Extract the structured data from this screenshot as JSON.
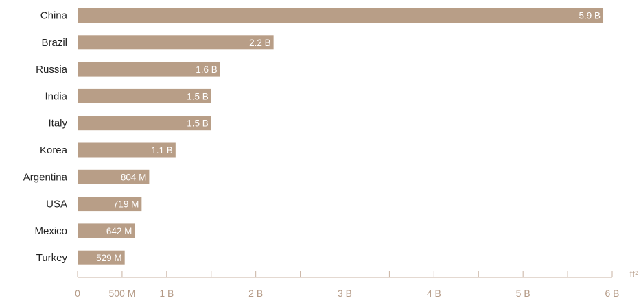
{
  "colors": {
    "bar": "#b89e87",
    "axis": "#c9b3a3",
    "tick_text": "#b49a86",
    "label_text": "#222222"
  },
  "chart_data": {
    "type": "bar",
    "orientation": "horizontal",
    "categories": [
      "China",
      "Brazil",
      "Russia",
      "India",
      "Italy",
      "Korea",
      "Argentina",
      "USA",
      "Mexico",
      "Turkey"
    ],
    "values": [
      5900000000,
      2200000000,
      1600000000,
      1500000000,
      1500000000,
      1100000000,
      804000000,
      719000000,
      642000000,
      529000000
    ],
    "value_labels": [
      "5.9 B",
      "2.2 B",
      "1.6 B",
      "1.5 B",
      "1.5 B",
      "1.1 B",
      "804 M",
      "719 M",
      "642 M",
      "529 M"
    ],
    "x_ticks": [
      0,
      500000000,
      1000000000,
      2000000000,
      3000000000,
      4000000000,
      5000000000,
      6000000000
    ],
    "x_tick_labels": [
      "0",
      "500 M",
      "1 B",
      "2 B",
      "3 B",
      "4 B",
      "5 B",
      "6 B"
    ],
    "x_minor_ticks": [
      1500000000,
      2500000000,
      3500000000,
      4500000000,
      5500000000
    ],
    "x_unit": "ft²",
    "xlim": [
      0,
      6000000000
    ],
    "title": "",
    "grid": false,
    "legend": "none"
  }
}
